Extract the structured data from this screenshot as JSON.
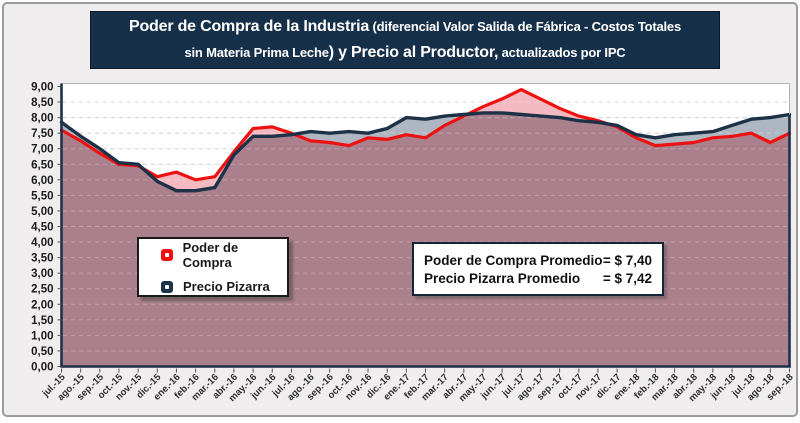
{
  "title": {
    "line1_big": "Poder de Compra de la Industria",
    "line1_small": " (diferencial Valor Salida de Fábrica - Costos Totales",
    "line2_small_lead": "sin Materia Prima Leche",
    "line2_big": ") y Precio al Productor,",
    "line2_small_tail": " actualizados por IPC"
  },
  "legend": {
    "items": [
      {
        "label": "Poder de Compra",
        "color": "#ee1111"
      },
      {
        "label": "Precio Pizarra",
        "color": "#1d3147"
      }
    ]
  },
  "annotation": {
    "rows": [
      {
        "label": "Poder de Compra Promedio",
        "value": "= $ 7,40"
      },
      {
        "label": "Precio Pizarra Promedio",
        "value": "= $ 7,42"
      }
    ]
  },
  "chart_data": {
    "type": "line",
    "title": "Poder de Compra de la Industria (diferencial Valor Salida de Fábrica - Costos Totales sin Materia Prima Leche) y Precio al Productor, actualizados por IPC",
    "categories": [
      "jul.-15",
      "ago.-15",
      "sep.-15",
      "oct.-15",
      "nov.-15",
      "dic.-15",
      "ene.-16",
      "feb.-16",
      "mar.-16",
      "abr.-16",
      "may.-16",
      "jun.-16",
      "jul.-16",
      "ago.-16",
      "sep.-16",
      "oct.-16",
      "nov.-16",
      "dic.-16",
      "ene.-17",
      "feb.-17",
      "mar.-17",
      "abr.-17",
      "may.-17",
      "jun.-17",
      "jul.-17",
      "ago.-17",
      "sep.-17",
      "oct.-17",
      "nov.-17",
      "dic.-17",
      "ene.-18",
      "feb.-18",
      "mar.-18",
      "abr.-18",
      "may.-18",
      "jun.-18",
      "jul.-18",
      "ago.-18",
      "sep.-18"
    ],
    "series": [
      {
        "name": "Poder de Compra",
        "color": "#ee1111",
        "fill": "#f5b9c1",
        "values": [
          7.6,
          7.25,
          6.85,
          6.5,
          6.45,
          6.1,
          6.25,
          6.0,
          6.1,
          6.9,
          7.65,
          7.7,
          7.5,
          7.25,
          7.2,
          7.1,
          7.35,
          7.3,
          7.45,
          7.35,
          7.75,
          8.05,
          8.35,
          8.6,
          8.9,
          8.6,
          8.3,
          8.05,
          7.9,
          7.7,
          7.35,
          7.1,
          7.15,
          7.2,
          7.35,
          7.4,
          7.5,
          7.2,
          7.5
        ]
      },
      {
        "name": "Precio Pizarra",
        "color": "#1d3147",
        "fill": "#aeb6c1",
        "values": [
          7.85,
          7.4,
          7.0,
          6.55,
          6.5,
          5.95,
          5.65,
          5.65,
          5.75,
          6.8,
          7.4,
          7.4,
          7.45,
          7.55,
          7.5,
          7.55,
          7.5,
          7.65,
          8.0,
          7.95,
          8.05,
          8.1,
          8.15,
          8.15,
          8.1,
          8.05,
          8.0,
          7.9,
          7.85,
          7.75,
          7.45,
          7.35,
          7.45,
          7.5,
          7.55,
          7.75,
          7.95,
          8.0,
          8.1
        ]
      }
    ],
    "overlap_fill": "#a9808b",
    "ylim": [
      0,
      9
    ],
    "ytick_step": 0.5,
    "y_tick_labels": [
      "9,00",
      "8,50",
      "8,00",
      "7,50",
      "7,00",
      "6,50",
      "6,00",
      "5,50",
      "5,00",
      "4,50",
      "4,00",
      "3,50",
      "3,00",
      "2,50",
      "2,00",
      "1,50",
      "1,00",
      "0,50",
      "0,00"
    ],
    "grid": "dashed horizontal",
    "legend_position": "inside-left",
    "averages": {
      "poder_de_compra": "$ 7,40",
      "precio_pizarra": "$ 7,42"
    }
  }
}
